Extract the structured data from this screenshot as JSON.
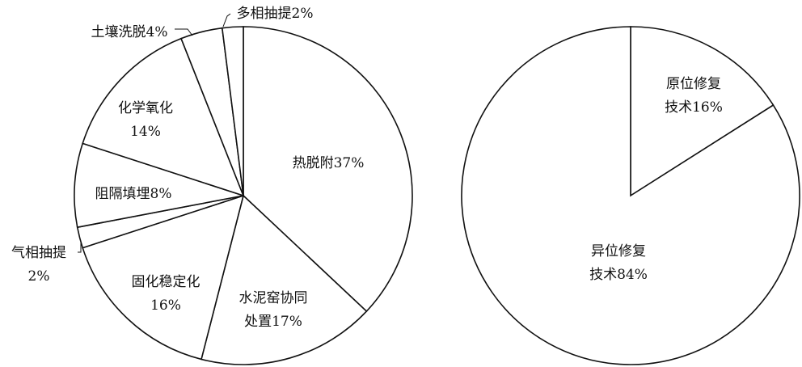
{
  "chart_data": [
    {
      "type": "pie",
      "start": "top",
      "direction": "clockwise",
      "slices": [
        {
          "label": [
            "热脱附37%"
          ],
          "value": 37
        },
        {
          "label": [
            "水泥窑协同",
            "处置17%"
          ],
          "value": 17
        },
        {
          "label": [
            "固化稳定化",
            "16%"
          ],
          "value": 16
        },
        {
          "label": [
            "气相抽提",
            "2%"
          ],
          "value": 2
        },
        {
          "label": [
            "阻隔填埋8%"
          ],
          "value": 8
        },
        {
          "label": [
            "化学氧化",
            "14%"
          ],
          "value": 14
        },
        {
          "label": [
            "土壤洗脱4%"
          ],
          "value": 4
        },
        {
          "label": [
            "多相抽提2%"
          ],
          "value": 2
        }
      ],
      "colors": {
        "fill": "#ffffff",
        "stroke": "#111111"
      }
    },
    {
      "type": "pie",
      "start": "top",
      "direction": "clockwise",
      "slices": [
        {
          "label": [
            "原位修复",
            "技术16%"
          ],
          "value": 16
        },
        {
          "label": [
            "异位修复",
            "技术84%"
          ],
          "value": 84
        }
      ],
      "colors": {
        "fill": "#ffffff",
        "stroke": "#111111"
      }
    }
  ]
}
